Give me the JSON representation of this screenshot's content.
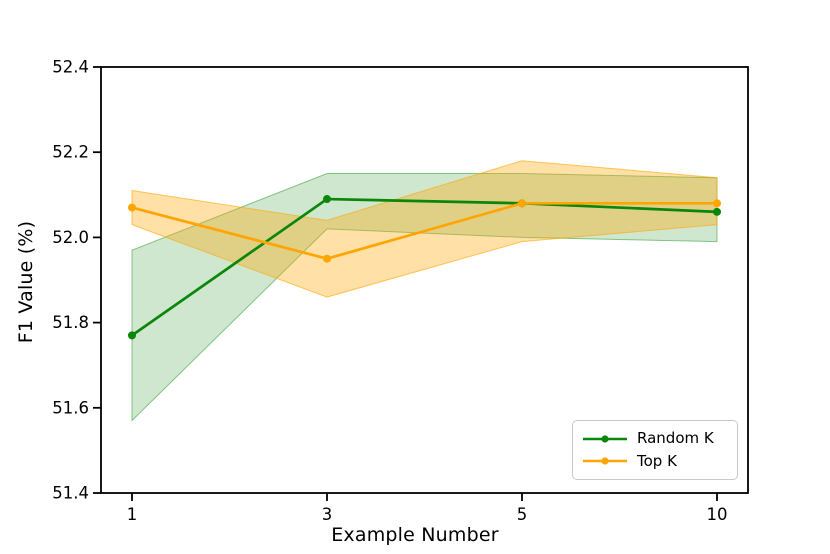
{
  "figure": {
    "background": "#ffffff",
    "spine_color": "#000000",
    "text_color": "#000000"
  },
  "chart_data": {
    "type": "line",
    "title": "",
    "xlabel": "Example Number",
    "ylabel": "F1 Value (%)",
    "x": [
      1,
      3,
      5,
      10
    ],
    "x_tick_labels": [
      "1",
      "3",
      "5",
      "10"
    ],
    "x_spacing": "categorical-even",
    "ylim": [
      51.4,
      52.4
    ],
    "yticks": [
      51.4,
      51.6,
      51.8,
      52.0,
      52.2,
      52.4
    ],
    "ytick_decimals": 1,
    "grid": false,
    "legend": {
      "position": "lower-right",
      "entries": [
        "Random K",
        "Top K"
      ]
    },
    "series": [
      {
        "name": "Random K",
        "color": "#0a870a",
        "marker": "circle",
        "values": [
          51.77,
          52.09,
          52.08,
          52.06
        ],
        "band_lower": [
          51.57,
          52.02,
          52.0,
          51.99
        ],
        "band_upper": [
          51.97,
          52.15,
          52.15,
          52.14
        ],
        "band_opacity": 0.2
      },
      {
        "name": "Top K",
        "color": "#FFA500",
        "marker": "circle",
        "values": [
          52.07,
          51.95,
          52.08,
          52.08
        ],
        "band_lower": [
          52.03,
          51.86,
          51.99,
          52.03
        ],
        "band_upper": [
          52.11,
          52.04,
          52.18,
          52.14
        ],
        "band_opacity": 0.35
      }
    ]
  }
}
